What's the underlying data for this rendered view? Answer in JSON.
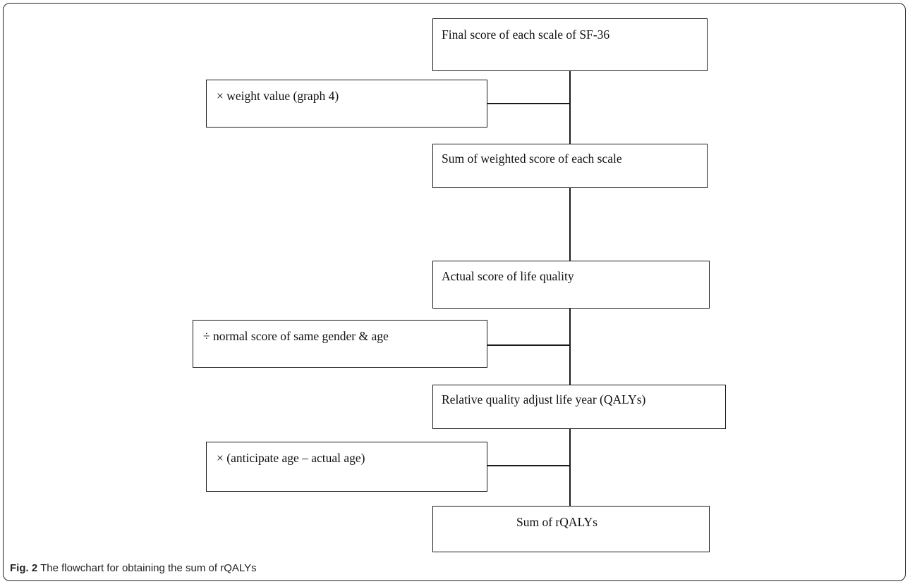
{
  "flowchart": {
    "main_steps": [
      "Final score of each scale of SF-36",
      "Sum of weighted score of each scale",
      "Actual score of life quality",
      "Relative quality adjust life year (QALYs)",
      "Sum of rQALYs"
    ],
    "side_operations": [
      "× weight value (graph 4)",
      "÷ normal score of same gender & age",
      "× (anticipate age – actual age)"
    ]
  },
  "caption": {
    "label": "Fig. 2",
    "text": " The flowchart for obtaining the sum of rQALYs"
  }
}
